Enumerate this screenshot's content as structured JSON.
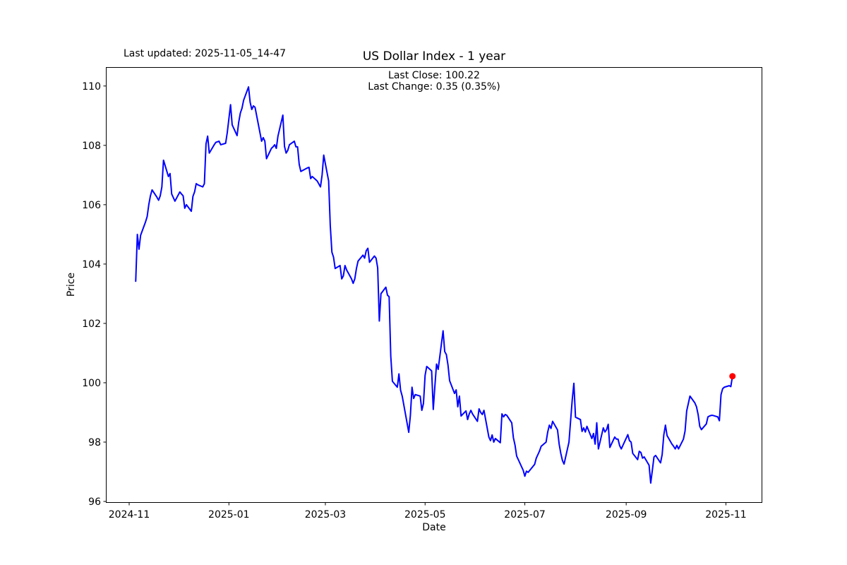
{
  "figure": {
    "title": "US Dollar Index - 1 year",
    "last_updated": "Last updated: 2025-11-05_14-47",
    "annotation_line1": "Last Close: 100.22",
    "annotation_line2": "Last Change: 0.35 (0.35%)",
    "xlabel": "Date",
    "ylabel": "Price"
  },
  "chart_data": {
    "type": "line",
    "title": "US Dollar Index - 1 year",
    "xlabel": "Date",
    "ylabel": "Price",
    "last_close": 100.22,
    "last_change": 0.35,
    "last_change_pct": "0.35%",
    "grid": false,
    "legend_position": "none",
    "line_color": "#0000ff",
    "line_width": 2,
    "marker_color": "#ff0000",
    "axis_color": "#000000",
    "background_color": "#ffffff",
    "y_ticks": [
      96,
      98,
      100,
      102,
      104,
      106,
      108,
      110
    ],
    "x_ticks": [
      {
        "date": "2024-11-01",
        "label": "2024-11"
      },
      {
        "date": "2025-01-01",
        "label": "2025-01"
      },
      {
        "date": "2025-03-01",
        "label": "2025-03"
      },
      {
        "date": "2025-05-01",
        "label": "2025-05"
      },
      {
        "date": "2025-07-01",
        "label": "2025-07"
      },
      {
        "date": "2025-09-01",
        "label": "2025-09"
      },
      {
        "date": "2025-11-01",
        "label": "2025-11"
      }
    ],
    "axis_margin_fraction": 0.05,
    "series": [
      {
        "name": "US Dollar Index close",
        "points": [
          [
            "2024-11-05",
            103.42
          ],
          [
            "2024-11-06",
            105.0
          ],
          [
            "2024-11-07",
            104.5
          ],
          [
            "2024-11-08",
            104.97
          ],
          [
            "2024-11-11",
            105.42
          ],
          [
            "2024-11-12",
            105.6
          ],
          [
            "2024-11-13",
            106.0
          ],
          [
            "2024-11-14",
            106.3
          ],
          [
            "2024-11-15",
            106.5
          ],
          [
            "2024-11-18",
            106.25
          ],
          [
            "2024-11-19",
            106.15
          ],
          [
            "2024-11-20",
            106.3
          ],
          [
            "2024-11-21",
            106.6
          ],
          [
            "2024-11-22",
            107.5
          ],
          [
            "2024-11-25",
            106.95
          ],
          [
            "2024-11-26",
            107.05
          ],
          [
            "2024-11-27",
            106.36
          ],
          [
            "2024-11-29",
            106.12
          ],
          [
            "2024-12-02",
            106.43
          ],
          [
            "2024-12-03",
            106.36
          ],
          [
            "2024-12-04",
            106.3
          ],
          [
            "2024-12-05",
            105.88
          ],
          [
            "2024-12-06",
            106.0
          ],
          [
            "2024-12-09",
            105.78
          ],
          [
            "2024-12-10",
            106.28
          ],
          [
            "2024-12-11",
            106.43
          ],
          [
            "2024-12-12",
            106.71
          ],
          [
            "2024-12-13",
            106.67
          ],
          [
            "2024-12-16",
            106.6
          ],
          [
            "2024-12-17",
            106.71
          ],
          [
            "2024-12-18",
            108.05
          ],
          [
            "2024-12-19",
            108.31
          ],
          [
            "2024-12-20",
            107.74
          ],
          [
            "2024-12-23",
            108.02
          ],
          [
            "2024-12-24",
            108.1
          ],
          [
            "2024-12-26",
            108.14
          ],
          [
            "2024-12-27",
            108.02
          ],
          [
            "2024-12-30",
            108.07
          ],
          [
            "2024-12-31",
            108.43
          ],
          [
            "2025-01-02",
            109.37
          ],
          [
            "2025-01-03",
            108.69
          ],
          [
            "2025-01-06",
            108.33
          ],
          [
            "2025-01-07",
            108.78
          ],
          [
            "2025-01-08",
            109.09
          ],
          [
            "2025-01-09",
            109.25
          ],
          [
            "2025-01-10",
            109.52
          ],
          [
            "2025-01-13",
            109.97
          ],
          [
            "2025-01-14",
            109.45
          ],
          [
            "2025-01-15",
            109.21
          ],
          [
            "2025-01-16",
            109.33
          ],
          [
            "2025-01-17",
            109.28
          ],
          [
            "2025-01-21",
            108.14
          ],
          [
            "2025-01-22",
            108.26
          ],
          [
            "2025-01-23",
            108.14
          ],
          [
            "2025-01-24",
            107.55
          ],
          [
            "2025-01-27",
            107.9
          ],
          [
            "2025-01-28",
            107.95
          ],
          [
            "2025-01-29",
            108.02
          ],
          [
            "2025-01-30",
            107.9
          ],
          [
            "2025-01-31",
            108.31
          ],
          [
            "2025-02-03",
            109.02
          ],
          [
            "2025-02-04",
            107.97
          ],
          [
            "2025-02-05",
            107.74
          ],
          [
            "2025-02-06",
            107.83
          ],
          [
            "2025-02-07",
            108.02
          ],
          [
            "2025-02-10",
            108.14
          ],
          [
            "2025-02-11",
            107.95
          ],
          [
            "2025-02-12",
            107.95
          ],
          [
            "2025-02-13",
            107.36
          ],
          [
            "2025-02-14",
            107.12
          ],
          [
            "2025-02-18",
            107.24
          ],
          [
            "2025-02-19",
            107.26
          ],
          [
            "2025-02-20",
            106.88
          ],
          [
            "2025-02-21",
            106.95
          ],
          [
            "2025-02-24",
            106.8
          ],
          [
            "2025-02-25",
            106.7
          ],
          [
            "2025-02-26",
            106.6
          ],
          [
            "2025-02-27",
            107.0
          ],
          [
            "2025-02-28",
            107.67
          ],
          [
            "2025-03-03",
            106.8
          ],
          [
            "2025-03-04",
            105.3
          ],
          [
            "2025-03-05",
            104.4
          ],
          [
            "2025-03-06",
            104.23
          ],
          [
            "2025-03-07",
            103.85
          ],
          [
            "2025-03-10",
            103.95
          ],
          [
            "2025-03-11",
            103.5
          ],
          [
            "2025-03-12",
            103.6
          ],
          [
            "2025-03-13",
            103.95
          ],
          [
            "2025-03-14",
            103.8
          ],
          [
            "2025-03-17",
            103.5
          ],
          [
            "2025-03-18",
            103.35
          ],
          [
            "2025-03-19",
            103.5
          ],
          [
            "2025-03-20",
            103.85
          ],
          [
            "2025-03-21",
            104.1
          ],
          [
            "2025-03-24",
            104.3
          ],
          [
            "2025-03-25",
            104.2
          ],
          [
            "2025-03-26",
            104.45
          ],
          [
            "2025-03-27",
            104.53
          ],
          [
            "2025-03-28",
            104.06
          ],
          [
            "2025-03-31",
            104.27
          ],
          [
            "2025-04-01",
            104.2
          ],
          [
            "2025-04-02",
            103.87
          ],
          [
            "2025-04-03",
            102.08
          ],
          [
            "2025-04-04",
            103.0
          ],
          [
            "2025-04-07",
            103.22
          ],
          [
            "2025-04-08",
            102.95
          ],
          [
            "2025-04-09",
            102.9
          ],
          [
            "2025-04-10",
            100.9
          ],
          [
            "2025-04-11",
            100.05
          ],
          [
            "2025-04-14",
            99.85
          ],
          [
            "2025-04-15",
            100.3
          ],
          [
            "2025-04-16",
            99.75
          ],
          [
            "2025-04-17",
            99.55
          ],
          [
            "2025-04-21",
            98.33
          ],
          [
            "2025-04-22",
            98.9
          ],
          [
            "2025-04-23",
            99.85
          ],
          [
            "2025-04-24",
            99.47
          ],
          [
            "2025-04-25",
            99.6
          ],
          [
            "2025-04-28",
            99.55
          ],
          [
            "2025-04-29",
            99.07
          ],
          [
            "2025-04-30",
            99.3
          ],
          [
            "2025-05-01",
            100.25
          ],
          [
            "2025-05-02",
            100.55
          ],
          [
            "2025-05-05",
            100.4
          ],
          [
            "2025-05-06",
            99.1
          ],
          [
            "2025-05-07",
            99.9
          ],
          [
            "2025-05-08",
            100.63
          ],
          [
            "2025-05-09",
            100.45
          ],
          [
            "2025-05-12",
            101.75
          ],
          [
            "2025-05-13",
            101.05
          ],
          [
            "2025-05-14",
            100.95
          ],
          [
            "2025-05-15",
            100.6
          ],
          [
            "2025-05-16",
            100.07
          ],
          [
            "2025-05-19",
            99.64
          ],
          [
            "2025-05-20",
            99.76
          ],
          [
            "2025-05-21",
            99.19
          ],
          [
            "2025-05-22",
            99.55
          ],
          [
            "2025-05-23",
            98.88
          ],
          [
            "2025-05-26",
            99.05
          ],
          [
            "2025-05-27",
            98.76
          ],
          [
            "2025-05-28",
            98.95
          ],
          [
            "2025-05-29",
            99.07
          ],
          [
            "2025-05-30",
            98.95
          ],
          [
            "2025-06-02",
            98.7
          ],
          [
            "2025-06-03",
            99.12
          ],
          [
            "2025-06-04",
            99.0
          ],
          [
            "2025-06-05",
            98.93
          ],
          [
            "2025-06-06",
            99.07
          ],
          [
            "2025-06-09",
            98.17
          ],
          [
            "2025-06-10",
            98.05
          ],
          [
            "2025-06-11",
            98.24
          ],
          [
            "2025-06-12",
            98.0
          ],
          [
            "2025-06-13",
            98.12
          ],
          [
            "2025-06-16",
            97.98
          ],
          [
            "2025-06-17",
            98.95
          ],
          [
            "2025-06-18",
            98.85
          ],
          [
            "2025-06-19",
            98.93
          ],
          [
            "2025-06-20",
            98.9
          ],
          [
            "2025-06-23",
            98.65
          ],
          [
            "2025-06-24",
            98.15
          ],
          [
            "2025-06-25",
            97.9
          ],
          [
            "2025-06-26",
            97.53
          ],
          [
            "2025-06-27",
            97.41
          ],
          [
            "2025-06-30",
            97.05
          ],
          [
            "2025-07-01",
            96.85
          ],
          [
            "2025-07-02",
            97.02
          ],
          [
            "2025-07-03",
            96.98
          ],
          [
            "2025-07-07",
            97.25
          ],
          [
            "2025-07-08",
            97.46
          ],
          [
            "2025-07-09",
            97.58
          ],
          [
            "2025-07-10",
            97.7
          ],
          [
            "2025-07-11",
            97.86
          ],
          [
            "2025-07-14",
            98.0
          ],
          [
            "2025-07-15",
            98.34
          ],
          [
            "2025-07-16",
            98.57
          ],
          [
            "2025-07-17",
            98.46
          ],
          [
            "2025-07-18",
            98.7
          ],
          [
            "2025-07-21",
            98.41
          ],
          [
            "2025-07-22",
            97.93
          ],
          [
            "2025-07-23",
            97.62
          ],
          [
            "2025-07-24",
            97.38
          ],
          [
            "2025-07-25",
            97.26
          ],
          [
            "2025-07-28",
            98.0
          ],
          [
            "2025-07-29",
            98.72
          ],
          [
            "2025-07-30",
            99.43
          ],
          [
            "2025-07-31",
            99.98
          ],
          [
            "2025-08-01",
            98.84
          ],
          [
            "2025-08-04",
            98.76
          ],
          [
            "2025-08-05",
            98.36
          ],
          [
            "2025-08-06",
            98.48
          ],
          [
            "2025-08-07",
            98.34
          ],
          [
            "2025-08-08",
            98.53
          ],
          [
            "2025-08-11",
            98.12
          ],
          [
            "2025-08-12",
            98.29
          ],
          [
            "2025-08-13",
            97.93
          ],
          [
            "2025-08-14",
            98.65
          ],
          [
            "2025-08-15",
            97.77
          ],
          [
            "2025-08-18",
            98.48
          ],
          [
            "2025-08-19",
            98.34
          ],
          [
            "2025-08-20",
            98.42
          ],
          [
            "2025-08-21",
            98.6
          ],
          [
            "2025-08-22",
            97.82
          ],
          [
            "2025-08-25",
            98.17
          ],
          [
            "2025-08-26",
            98.1
          ],
          [
            "2025-08-27",
            98.1
          ],
          [
            "2025-08-28",
            97.88
          ],
          [
            "2025-08-29",
            97.77
          ],
          [
            "2025-09-02",
            98.25
          ],
          [
            "2025-09-03",
            98.05
          ],
          [
            "2025-09-04",
            98.0
          ],
          [
            "2025-09-05",
            97.62
          ],
          [
            "2025-09-08",
            97.41
          ],
          [
            "2025-09-09",
            97.69
          ],
          [
            "2025-09-10",
            97.65
          ],
          [
            "2025-09-11",
            97.46
          ],
          [
            "2025-09-12",
            97.5
          ],
          [
            "2025-09-15",
            97.22
          ],
          [
            "2025-09-16",
            96.62
          ],
          [
            "2025-09-17",
            97.05
          ],
          [
            "2025-09-18",
            97.5
          ],
          [
            "2025-09-19",
            97.55
          ],
          [
            "2025-09-22",
            97.3
          ],
          [
            "2025-09-23",
            97.58
          ],
          [
            "2025-09-24",
            98.24
          ],
          [
            "2025-09-25",
            98.57
          ],
          [
            "2025-09-26",
            98.22
          ],
          [
            "2025-09-29",
            97.93
          ],
          [
            "2025-09-30",
            97.86
          ],
          [
            "2025-10-01",
            97.77
          ],
          [
            "2025-10-02",
            97.89
          ],
          [
            "2025-10-03",
            97.77
          ],
          [
            "2025-10-06",
            98.1
          ],
          [
            "2025-10-07",
            98.37
          ],
          [
            "2025-10-08",
            99.05
          ],
          [
            "2025-10-09",
            99.3
          ],
          [
            "2025-10-10",
            99.55
          ],
          [
            "2025-10-13",
            99.32
          ],
          [
            "2025-10-14",
            99.19
          ],
          [
            "2025-10-15",
            98.93
          ],
          [
            "2025-10-16",
            98.53
          ],
          [
            "2025-10-17",
            98.42
          ],
          [
            "2025-10-20",
            98.61
          ],
          [
            "2025-10-21",
            98.85
          ],
          [
            "2025-10-22",
            98.88
          ],
          [
            "2025-10-23",
            98.9
          ],
          [
            "2025-10-24",
            98.9
          ],
          [
            "2025-10-27",
            98.85
          ],
          [
            "2025-10-28",
            98.72
          ],
          [
            "2025-10-29",
            99.6
          ],
          [
            "2025-10-30",
            99.8
          ],
          [
            "2025-10-31",
            99.85
          ],
          [
            "2025-11-03",
            99.9
          ],
          [
            "2025-11-04",
            99.87
          ],
          [
            "2025-11-05",
            100.22
          ]
        ]
      }
    ]
  }
}
